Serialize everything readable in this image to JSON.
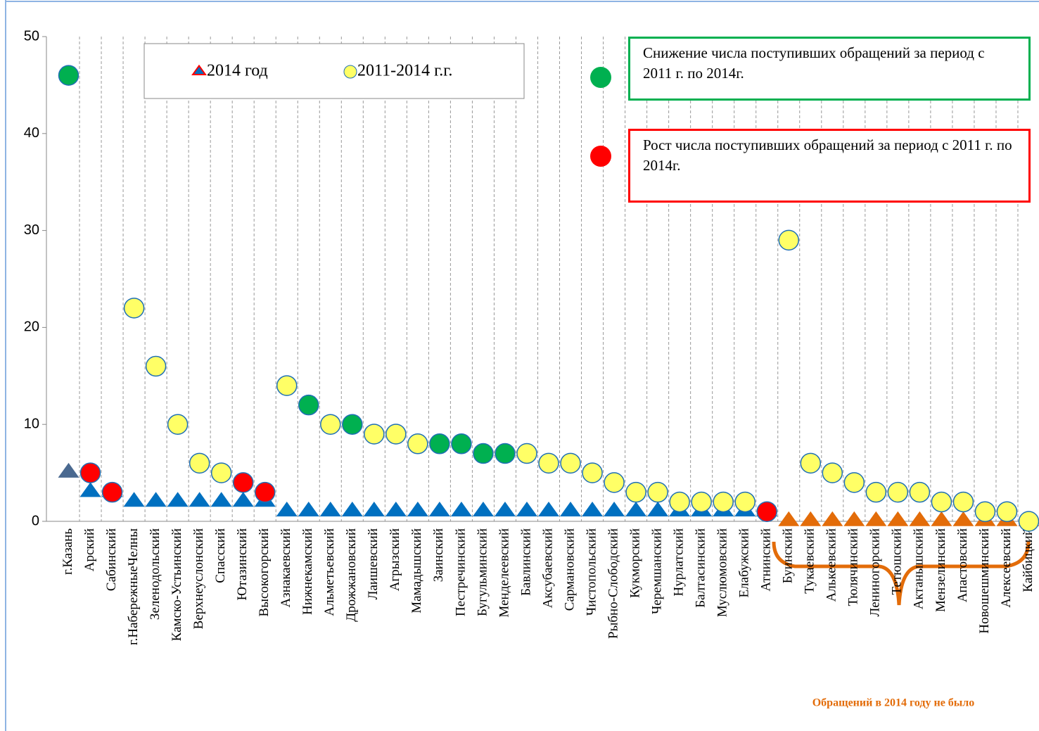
{
  "chart_data": {
    "type": "scatter",
    "categories": [
      "г.Казань",
      "Арский",
      "Сабинский",
      "г.НабережныеЧелны",
      "Зеленодольский",
      "Камско-Устьинский",
      "Верхнеуслонский",
      "Спасский",
      "Ютазинский",
      "Высокогорский",
      "Азнакаевский",
      "Нижнекамский",
      "Альметьевский",
      "Дрожжановский",
      "Лаишевский",
      "Агрызский",
      "Мамадышский",
      "Заинский",
      "Пестречинский",
      "Бугульминский",
      "Менделеевский",
      "Бавлинский",
      "Аксубаевский",
      "Сармановский",
      "Чистопольский",
      "Рыбно-Слободский",
      "Кукморский",
      "Черемшанский",
      "Нурлатский",
      "Балтасинский",
      "Муслюмовский",
      "Елабужский",
      "Атнинский",
      "Буинский",
      "Тукаевский",
      "Алькеевский",
      "Тюлячинский",
      "Лениногорский",
      "Тетюшский",
      "Актанышский",
      "Мензелинский",
      "Апастовский",
      "Новошешминский",
      "Алексеевский",
      "Кайбицкий"
    ],
    "series": [
      {
        "name": "2014 год",
        "marker": "triangle",
        "color": "#0070c0",
        "values": [
          5,
          3,
          3,
          2,
          2,
          2,
          2,
          2,
          2,
          2,
          1,
          1,
          1,
          1,
          1,
          1,
          1,
          1,
          1,
          1,
          1,
          1,
          1,
          1,
          1,
          1,
          1,
          1,
          1,
          1,
          1,
          1,
          1,
          0,
          0,
          0,
          0,
          0,
          0,
          0,
          0,
          0,
          0,
          0,
          0
        ],
        "colors": [
          "#4a6990",
          "#0070c0",
          "#0070c0",
          "#0070c0",
          "#0070c0",
          "#0070c0",
          "#0070c0",
          "#0070c0",
          "#0070c0",
          "#0070c0",
          "#0070c0",
          "#0070c0",
          "#0070c0",
          "#0070c0",
          "#0070c0",
          "#0070c0",
          "#0070c0",
          "#0070c0",
          "#0070c0",
          "#0070c0",
          "#0070c0",
          "#0070c0",
          "#0070c0",
          "#0070c0",
          "#0070c0",
          "#0070c0",
          "#0070c0",
          "#0070c0",
          "#0070c0",
          "#0070c0",
          "#0070c0",
          "#0070c0",
          "#0070c0",
          "#e36c09",
          "#e36c09",
          "#e36c09",
          "#e36c09",
          "#e36c09",
          "#e36c09",
          "#e36c09",
          "#e36c09",
          "#e36c09",
          "#e36c09",
          "#e36c09",
          "#e36c09"
        ]
      },
      {
        "name": "2011-2014 г.г.",
        "marker": "circle",
        "color": "#ffff66",
        "values": [
          46,
          5,
          3,
          22,
          16,
          10,
          6,
          5,
          4,
          3,
          14,
          12,
          10,
          10,
          9,
          9,
          8,
          8,
          8,
          7,
          7,
          7,
          6,
          6,
          5,
          4,
          3,
          3,
          2,
          2,
          2,
          2,
          1,
          29,
          6,
          5,
          4,
          3,
          3,
          3,
          2,
          2,
          1,
          1,
          0
        ],
        "colors": [
          "#00b050",
          "#ff0000",
          "#ff0000",
          "#ffff66",
          "#ffff66",
          "#ffff66",
          "#ffff66",
          "#ffff66",
          "#ff0000",
          "#ff0000",
          "#ffff66",
          "#00b050",
          "#ffff66",
          "#00b050",
          "#ffff66",
          "#ffff66",
          "#ffff66",
          "#00b050",
          "#00b050",
          "#00b050",
          "#00b050",
          "#ffff66",
          "#ffff66",
          "#ffff66",
          "#ffff66",
          "#ffff66",
          "#ffff66",
          "#ffff66",
          "#ffff66",
          "#ffff66",
          "#ffff66",
          "#ffff66",
          "#ff0000",
          "#ffff66",
          "#ffff66",
          "#ffff66",
          "#ffff66",
          "#ffff66",
          "#ffff66",
          "#ffff66",
          "#ffff66",
          "#ffff66",
          "#ffff66",
          "#ffff66",
          "#ffff66"
        ]
      }
    ],
    "ylim": [
      0,
      50
    ],
    "yticks": [
      0,
      10,
      20,
      30,
      40,
      50
    ],
    "grid": true,
    "annotations": [
      {
        "text": "Снижение числа поступивших обращений за период с 2011 г. по 2014г.",
        "color": "#00b050"
      },
      {
        "text": "Рост  числа поступивших обращений за период с 2011 г. по 2014г.",
        "color": "#ff0000"
      },
      {
        "text": "Обращений в 2014 году не было",
        "color": "#e36c09"
      }
    ]
  }
}
